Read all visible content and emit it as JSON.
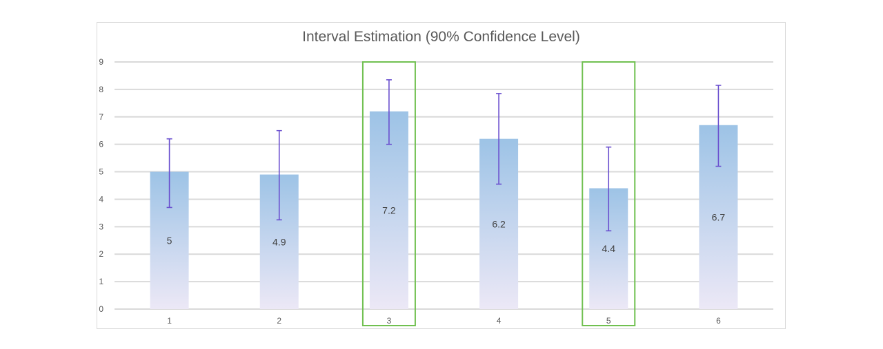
{
  "chart_data": {
    "type": "bar",
    "title": "Interval Estimation (90% Confidence Level)",
    "categories": [
      "1",
      "2",
      "3",
      "4",
      "5",
      "6"
    ],
    "values": [
      5,
      4.9,
      7.2,
      6.2,
      4.4,
      6.7
    ],
    "error_bars": {
      "lower": [
        3.7,
        3.25,
        6.0,
        4.55,
        2.85,
        5.2
      ],
      "upper": [
        6.2,
        6.5,
        8.35,
        7.85,
        5.9,
        8.15
      ]
    },
    "data_labels": [
      "5",
      "4.9",
      "7.2",
      "6.2",
      "4.4",
      "6.7"
    ],
    "ylim": [
      0,
      9
    ],
    "yticks": [
      "0",
      "1",
      "2",
      "3",
      "4",
      "5",
      "6",
      "7",
      "8",
      "9"
    ],
    "grid": true,
    "legend": "none",
    "highlighted_categories": [
      "3",
      "5"
    ],
    "colors": {
      "bar_top": "#9dc3e6",
      "bar_bottom": "#ece8f6",
      "error_bar": "#6a4fcf",
      "highlight_box": "#70c050",
      "gridline": "#d9d9d9"
    }
  }
}
